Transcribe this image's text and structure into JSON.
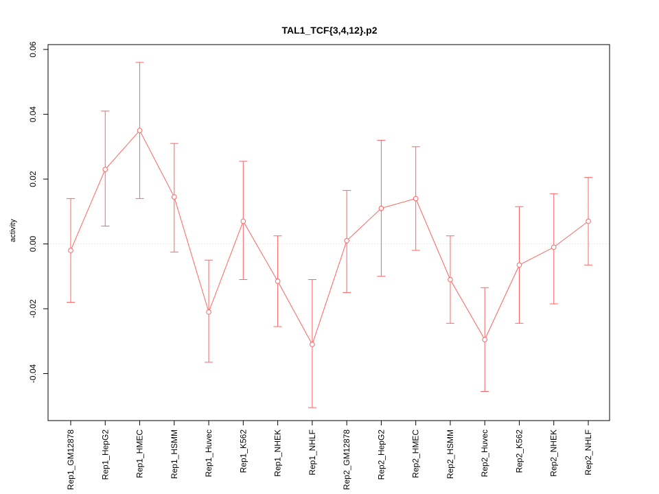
{
  "chart_data": {
    "type": "line",
    "title": "TAL1_TCF{3,4,12}.p2",
    "ylabel": "activity",
    "xlabel": "",
    "ylim": [
      -0.0545,
      0.0615
    ],
    "yticks": [
      -0.04,
      -0.02,
      0,
      0.02,
      0.04,
      0.06
    ],
    "ytick_format_decimals": 2,
    "reference_line": 0,
    "grid": "dotted-zero-line-only",
    "legend": "none",
    "series_color": "#ff6161",
    "axis_color": "#000000",
    "reference_line_color": "#d9d9d9",
    "categories": [
      "Rep1_GM12878",
      "Rep1_HepG2",
      "Rep1_HMEC",
      "Rep1_HSMM",
      "Rep1_Huvec",
      "Rep1_K562",
      "Rep1_NHEK",
      "Rep1_NHLF",
      "Rep2_GM12878",
      "Rep2_HepG2",
      "Rep2_HMEC",
      "Rep2_HSMM",
      "Rep2_Huvec",
      "Rep2_K562",
      "Rep2_NHEK",
      "Rep2_NHLF"
    ],
    "values": [
      -0.002,
      0.023,
      0.035,
      0.0145,
      -0.021,
      0.007,
      -0.0115,
      -0.031,
      0.001,
      0.011,
      0.014,
      -0.011,
      -0.0295,
      -0.0065,
      -0.001,
      0.007
    ],
    "error_upper": [
      0.014,
      0.041,
      0.056,
      0.031,
      -0.005,
      0.0255,
      0.0025,
      -0.011,
      0.0165,
      0.032,
      0.03,
      0.0025,
      -0.0135,
      0.0115,
      0.0155,
      0.0205
    ],
    "error_lower": [
      -0.018,
      0.0055,
      0.014,
      -0.0025,
      -0.0365,
      -0.011,
      -0.0255,
      -0.0505,
      -0.015,
      -0.01,
      -0.002,
      -0.0245,
      -0.0455,
      -0.0245,
      -0.0185,
      -0.0065
    ]
  }
}
